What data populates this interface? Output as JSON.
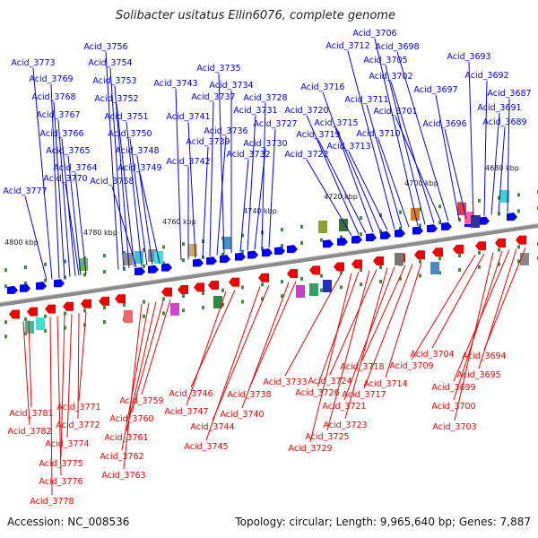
{
  "title": "Solibacter usitatus Ellin6076, complete genome",
  "footer": {
    "accession": "Accession: NC_008536",
    "summary": "Topology: circular; Length: 9,965,640 bp; Genes: 7,887"
  },
  "colors": {
    "forward": "#0000ee",
    "reverse": "#ee0000",
    "backbone": "#8a8a8a",
    "tick": "#2a9a2a"
  },
  "scale_labels": [
    "4680 kbp",
    "4700 kbp",
    "4720 kbp",
    "4740 kbp",
    "4760 kbp",
    "4780 kbp",
    "4800 kbp"
  ],
  "forward_labels": [
    "Acid_3687",
    "Acid_3689",
    "Acid_3691",
    "Acid_3692",
    "Acid_3693",
    "Acid_3696",
    "Acid_3697",
    "Acid_3698",
    "Acid_3701",
    "Acid_3702",
    "Acid_3705",
    "Acid_3706",
    "Acid_3710",
    "Acid_3711",
    "Acid_3712",
    "Acid_3713",
    "Acid_3715",
    "Acid_3716",
    "Acid_3719",
    "Acid_3720",
    "Acid_3722",
    "Acid_3727",
    "Acid_3728",
    "Acid_3730",
    "Acid_3731",
    "Acid_3732",
    "Acid_3734",
    "Acid_3735",
    "Acid_3736",
    "Acid_3737",
    "Acid_3739",
    "Acid_3741",
    "Acid_3742",
    "Acid_3743",
    "Acid_3748",
    "Acid_3749",
    "Acid_3750",
    "Acid_3751",
    "Acid_3752",
    "Acid_3753",
    "Acid_3754",
    "Acid_3756",
    "Acid_3758",
    "Acid_3764",
    "Acid_3765",
    "Acid_3766",
    "Acid_3767",
    "Acid_3768",
    "Acid_3769",
    "Acid_3770",
    "Acid_3773",
    "Acid_3777"
  ],
  "reverse_labels": [
    "Acid_3694",
    "Acid_3695",
    "Acid_3699",
    "Acid_3700",
    "Acid_3703",
    "Acid_3704",
    "Acid_3709",
    "Acid_3714",
    "Acid_3717",
    "Acid_3718",
    "Acid_3721",
    "Acid_3723",
    "Acid_3724",
    "Acid_3725",
    "Acid_3726",
    "Acid_3729",
    "Acid_3733",
    "Acid_3738",
    "Acid_3740",
    "Acid_3744",
    "Acid_3745",
    "Acid_3746",
    "Acid_3747",
    "Acid_3759",
    "Acid_3760",
    "Acid_3761",
    "Acid_3762",
    "Acid_3763",
    "Acid_3771",
    "Acid_3772",
    "Acid_3774",
    "Acid_3775",
    "Acid_3776",
    "Acid_3778",
    "Acid_3781",
    "Acid_3782"
  ]
}
